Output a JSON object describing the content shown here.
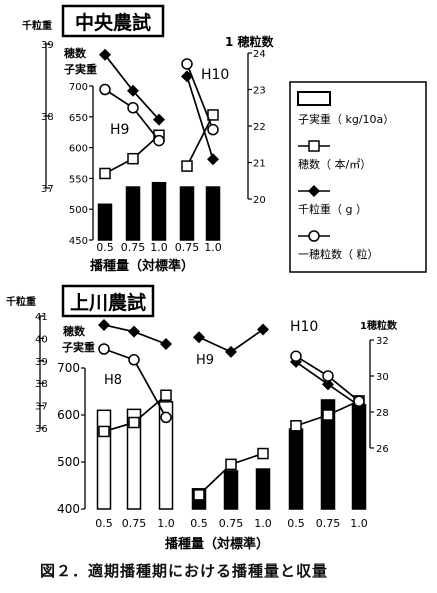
{
  "caption": "図２．適期播種期における播種量と収量",
  "legend": {
    "yield": "子実重（ kg/10a）",
    "panicles": "穂数（ 本/㎡）",
    "weight": "千粒重（ g ）",
    "grains": "一穂粒数（ 粒）"
  },
  "chart_data": [
    {
      "type": "bar+line",
      "title": "中央農試",
      "xlabel": "播種量（対標準）",
      "categories": [
        "0.5",
        "0.75",
        "1.0",
        "0.75",
        "1.0"
      ],
      "group_labels": [
        "H9",
        "H10"
      ],
      "axis_labels": {
        "thousand_grain_weight": "千粒重",
        "panicles": "穂数",
        "yield": "子実重",
        "grains": "1 穂粒数"
      },
      "axes": {
        "yield": {
          "range": [
            450,
            700
          ],
          "ticks": [
            "450",
            "500",
            "550",
            "600",
            "650",
            "700"
          ]
        },
        "thousand_grain_weight": {
          "range": [
            37,
            39
          ],
          "ticks": [
            "37",
            "38",
            "39"
          ]
        },
        "grains": {
          "range": [
            20,
            24
          ],
          "ticks": [
            "20",
            "21",
            "22",
            "23",
            "24"
          ]
        }
      },
      "series": [
        {
          "key": "yield",
          "groups": [
            [
              508,
              536,
              543
            ],
            [
              536,
              536
            ]
          ]
        },
        {
          "key": "panicles",
          "groups": [
            [
              558,
              582,
              620
            ],
            [
              570,
              653
            ]
          ]
        },
        {
          "key": "weight",
          "groups": [
            [
              38.85,
              38.35,
              37.95
            ],
            [
              38.55,
              37.4
            ]
          ]
        },
        {
          "key": "grains",
          "groups": [
            [
              23.0,
              22.5,
              21.6
            ],
            [
              23.7,
              21.9
            ]
          ]
        }
      ]
    },
    {
      "type": "bar+line",
      "title": "上川農試",
      "xlabel": "播種量（対標準）",
      "categories": [
        "0.5",
        "0.75",
        "1.0",
        "0.5",
        "0.75",
        "1.0",
        "0.5",
        "0.75",
        "1.0"
      ],
      "group_labels": [
        "H8",
        "H9",
        "H10"
      ],
      "axis_labels": {
        "thousand_grain_weight": "千粒重",
        "panicles": "穂数",
        "yield": "子実重",
        "grains": "1穂粒数"
      },
      "axes": {
        "yield": {
          "range": [
            400,
            700
          ],
          "ticks": [
            "400",
            "500",
            "600",
            "700"
          ]
        },
        "thousand_grain_weight": {
          "range": [
            36,
            41
          ],
          "ticks": [
            "36",
            "37",
            "38",
            "39",
            "40",
            "41"
          ]
        },
        "grains": {
          "range": [
            26,
            32
          ],
          "ticks": [
            "26",
            "28",
            "30",
            "32"
          ]
        }
      },
      "series": [
        {
          "key": "yield",
          "groups": [
            [
              610,
              612,
              628
            ],
            [
              443,
              481,
              485
            ],
            [
              570,
              632,
              622
            ]
          ]
        },
        {
          "key": "panicles",
          "groups": [
            [
              565,
              584,
              642
            ],
            [
              430,
              495,
              518
            ],
            [
              577,
              600,
              630
            ]
          ]
        },
        {
          "key": "weight",
          "groups": [
            [
              40.6,
              40.3,
              39.75
            ],
            [
              40.05,
              39.4,
              40.4
            ],
            [
              38.95,
              37.95,
              37.0
            ]
          ]
        },
        {
          "key": "grains",
          "groups": [
            [
              31.5,
              30.9,
              27.7
            ],
            [
              null,
              null,
              null
            ],
            [
              31.1,
              30.0,
              28.6
            ]
          ]
        }
      ]
    }
  ]
}
